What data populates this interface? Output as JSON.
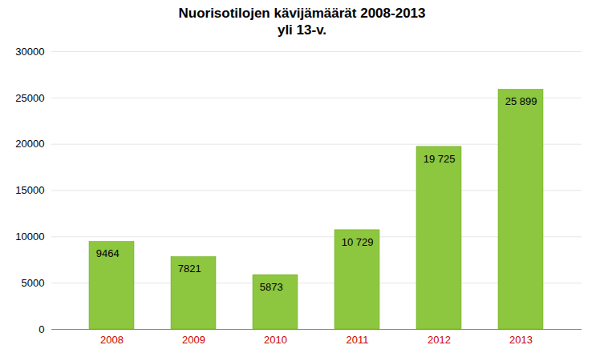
{
  "chart_data": {
    "type": "bar",
    "title": "Nuorisotilojen kävijämäärät 2008-2013",
    "subtitle": "yli 13-v.",
    "categories": [
      "2008",
      "2009",
      "2010",
      "2011",
      "2012",
      "2013"
    ],
    "values": [
      9464,
      7821,
      5873,
      10729,
      19725,
      25899
    ],
    "value_labels": [
      "9464",
      "7821",
      "5873",
      "10 729",
      "19 725",
      "25 899"
    ],
    "color": "#8dc63f",
    "ylim": [
      0,
      30000
    ],
    "yticks": [
      0,
      5000,
      10000,
      15000,
      20000,
      25000,
      30000
    ],
    "grid": true,
    "data_labels": true
  }
}
